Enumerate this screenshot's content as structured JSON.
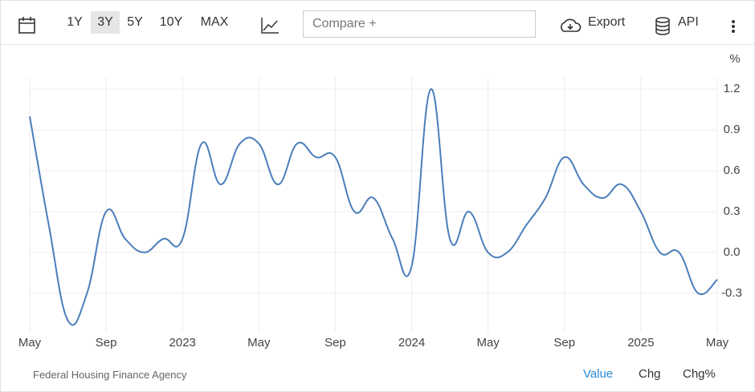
{
  "toolbar": {
    "ranges": [
      "1Y",
      "3Y",
      "5Y",
      "10Y",
      "MAX"
    ],
    "selected": "3Y",
    "compare": "Compare +",
    "export": "Export",
    "api": "API"
  },
  "chart_data": {
    "type": "line",
    "unit": "%",
    "categories": [
      "May",
      null,
      null,
      null,
      "Sep",
      null,
      null,
      null,
      "2023",
      null,
      null,
      null,
      "May",
      null,
      null,
      null,
      "Sep",
      null,
      null,
      null,
      "2024",
      null,
      null,
      null,
      "May",
      null,
      null,
      null,
      "Sep",
      null,
      null,
      null,
      "2025",
      null,
      null,
      null,
      "May"
    ],
    "series": [
      {
        "color": "#4a7ebb",
        "values": [
          1.0,
          0.2,
          -0.5,
          -0.3,
          0.3,
          0.1,
          0.0,
          0.1,
          0.1,
          0.8,
          0.5,
          0.8,
          0.8,
          0.5,
          0.8,
          0.7,
          0.7,
          0.3,
          0.4,
          0.1,
          -0.1,
          1.2,
          0.1,
          0.3,
          0.0,
          0.0,
          0.2,
          0.4,
          0.7,
          0.5,
          0.4,
          0.5,
          0.3,
          0.0,
          0.0,
          -0.3,
          -0.2
        ]
      }
    ],
    "ylim": [
      -0.59,
      1.29
    ],
    "yticks": [
      1.2,
      0.9,
      0.6,
      0.3,
      {
        "value": 0,
        "label": "0.0"
      },
      -0.3
    ],
    "grid": true
  },
  "footer": {
    "source": "Federal Housing Finance Agency",
    "tabs": [
      "Value",
      "Chg",
      "Chg%"
    ],
    "active": "Value"
  }
}
